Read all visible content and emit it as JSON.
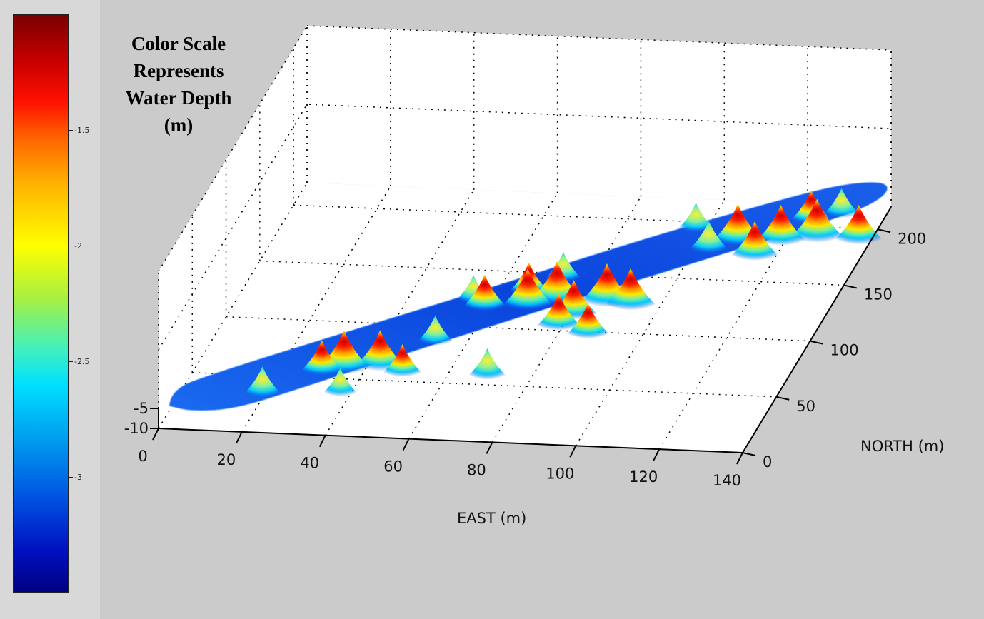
{
  "colorbar": {
    "title_lines": [
      "Color Scale",
      "Represents",
      "Water Depth",
      "(m)"
    ],
    "ticks": [
      {
        "value": -1.5,
        "label": "-1.5"
      },
      {
        "value": -2,
        "label": "-2"
      },
      {
        "value": -2.5,
        "label": "-2.5"
      },
      {
        "value": -3,
        "label": "-3"
      }
    ],
    "range": [
      -3.5,
      -1.0
    ],
    "colormap": "jet"
  },
  "chart_data": {
    "type": "surface",
    "title": "",
    "xlabel": "EAST (m)",
    "ylabel": "NORTH (m)",
    "zlabel": "",
    "xlim": [
      0,
      140
    ],
    "ylim": [
      0,
      220
    ],
    "zlim": [
      -10,
      -5
    ],
    "x_ticks": [
      0,
      20,
      40,
      60,
      80,
      100,
      120,
      140
    ],
    "y_ticks": [
      0,
      50,
      100,
      150,
      200
    ],
    "z_ticks": [
      -10,
      -5
    ],
    "grid": true,
    "colormap": "jet",
    "mounds": [
      {
        "east": 38,
        "north": 40,
        "height": 1.0
      },
      {
        "east": 46,
        "north": 44,
        "height": 0.9
      },
      {
        "east": 33,
        "north": 38,
        "height": 0.7
      },
      {
        "east": 52,
        "north": 40,
        "height": 0.6
      },
      {
        "east": 22,
        "north": 18,
        "height": 0.5
      },
      {
        "east": 40,
        "north": 22,
        "height": 0.4
      },
      {
        "east": 55,
        "north": 70,
        "height": 0.45
      },
      {
        "east": 72,
        "north": 42,
        "height": 0.5
      },
      {
        "east": 62,
        "north": 100,
        "height": 0.75
      },
      {
        "east": 72,
        "north": 102,
        "height": 0.95
      },
      {
        "east": 78,
        "north": 108,
        "height": 1.0
      },
      {
        "east": 84,
        "north": 96,
        "height": 0.85
      },
      {
        "east": 90,
        "north": 108,
        "height": 1.0
      },
      {
        "east": 96,
        "north": 106,
        "height": 0.95
      },
      {
        "east": 82,
        "north": 86,
        "height": 0.75
      },
      {
        "east": 70,
        "north": 116,
        "height": 0.6
      },
      {
        "east": 90,
        "north": 80,
        "height": 0.7
      },
      {
        "east": 76,
        "north": 130,
        "height": 0.45
      },
      {
        "east": 58,
        "north": 108,
        "height": 0.4
      },
      {
        "east": 106,
        "north": 160,
        "height": 0.55
      },
      {
        "east": 112,
        "north": 166,
        "height": 0.95
      },
      {
        "east": 122,
        "north": 168,
        "height": 0.9
      },
      {
        "east": 130,
        "north": 172,
        "height": 1.0
      },
      {
        "east": 118,
        "north": 154,
        "height": 0.85
      },
      {
        "east": 140,
        "north": 172,
        "height": 0.85
      },
      {
        "east": 126,
        "north": 188,
        "height": 0.65
      },
      {
        "east": 132,
        "north": 196,
        "height": 0.45
      },
      {
        "east": 100,
        "north": 178,
        "height": 0.45
      }
    ]
  }
}
